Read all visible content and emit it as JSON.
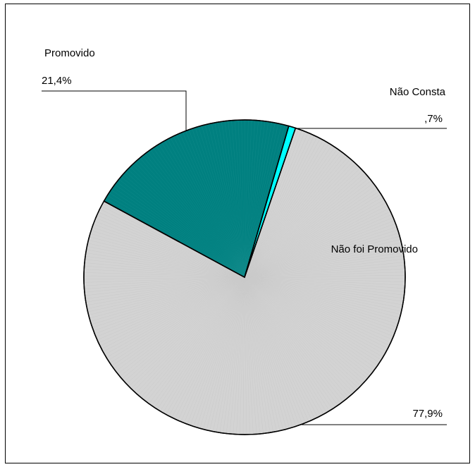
{
  "chart_data": {
    "type": "pie",
    "title": "",
    "slices": [
      {
        "label": "Não foi Promovido",
        "value": 77.9,
        "display": "77,9%",
        "color": "#d3d3d3"
      },
      {
        "label": "Promovido",
        "value": 21.4,
        "display": "21,4%",
        "color": "#008080"
      },
      {
        "label": "Não Consta",
        "value": 0.7,
        "display": ",7%",
        "color": "#00ffff"
      }
    ],
    "legend": "none",
    "data_labels": "outside-with-leader-lines"
  }
}
